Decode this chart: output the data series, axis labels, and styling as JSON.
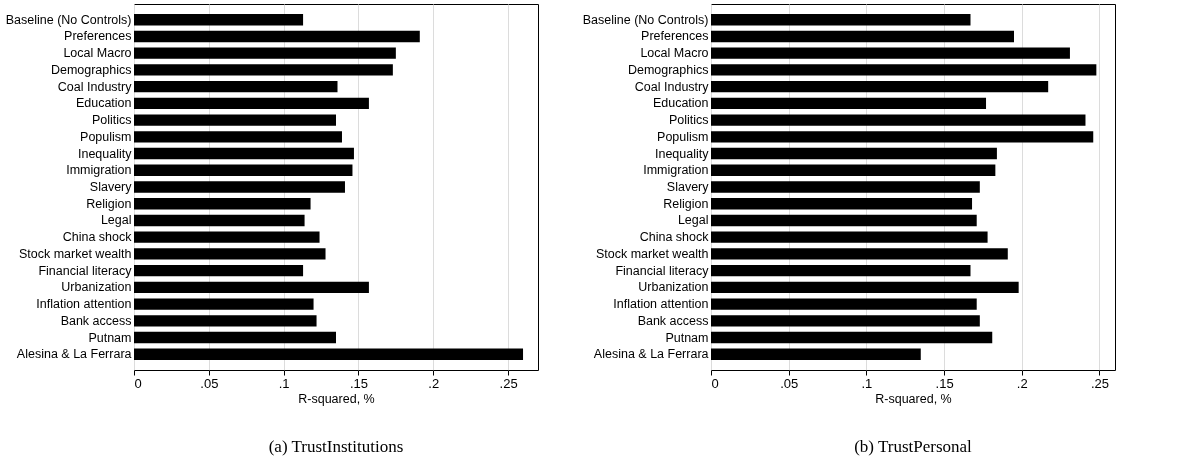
{
  "chart_data": [
    {
      "type": "bar",
      "orientation": "horizontal",
      "title": "(a) TrustInstitutions",
      "xlabel": "R-squared, %",
      "categories": [
        "Baseline (No Controls)",
        "Preferences",
        "Local Macro",
        "Demographics",
        "Coal Industry",
        "Education",
        "Politics",
        "Populism",
        "Inequality",
        "Immigration",
        "Slavery",
        "Religion",
        "Legal",
        "China shock",
        "Stock market wealth",
        "Financial literacy",
        "Urbanization",
        "Inflation attention",
        "Bank access",
        "Putnam",
        "Alesina & La Ferrara"
      ],
      "values": [
        0.113,
        0.191,
        0.175,
        0.173,
        0.136,
        0.157,
        0.135,
        0.139,
        0.147,
        0.146,
        0.141,
        0.118,
        0.114,
        0.124,
        0.128,
        0.113,
        0.157,
        0.12,
        0.122,
        0.135,
        0.26
      ],
      "color": "#000000",
      "xlim": [
        0,
        0.27
      ],
      "xticks": [
        0,
        {
          "value": 0.05,
          "label": ".05"
        },
        {
          "value": 0.1,
          "label": ".1"
        },
        {
          "value": 0.15,
          "label": ".15"
        },
        {
          "value": 0.2,
          "label": ".2"
        },
        {
          "value": 0.25,
          "label": ".25"
        }
      ],
      "grid": "x"
    },
    {
      "type": "bar",
      "orientation": "horizontal",
      "title": "(b) TrustPersonal",
      "xlabel": "R-squared, %",
      "categories": [
        "Baseline (No Controls)",
        "Preferences",
        "Local Macro",
        "Demographics",
        "Coal Industry",
        "Education",
        "Politics",
        "Populism",
        "Inequality",
        "Immigration",
        "Slavery",
        "Religion",
        "Legal",
        "China shock",
        "Stock market wealth",
        "Financial literacy",
        "Urbanization",
        "Inflation attention",
        "Bank access",
        "Putnam",
        "Alesina & La Ferrara"
      ],
      "values": [
        0.167,
        0.195,
        0.231,
        0.248,
        0.217,
        0.177,
        0.241,
        0.246,
        0.184,
        0.183,
        0.173,
        0.168,
        0.171,
        0.178,
        0.191,
        0.167,
        0.198,
        0.171,
        0.173,
        0.181,
        0.135
      ],
      "color": "#000000",
      "xlim": [
        0,
        0.26
      ],
      "xticks": [
        0,
        {
          "value": 0.05,
          "label": ".05"
        },
        {
          "value": 0.1,
          "label": ".1"
        },
        {
          "value": 0.15,
          "label": ".15"
        },
        {
          "value": 0.2,
          "label": ".2"
        },
        {
          "value": 0.25,
          "label": ".25"
        }
      ],
      "grid": "x"
    }
  ]
}
